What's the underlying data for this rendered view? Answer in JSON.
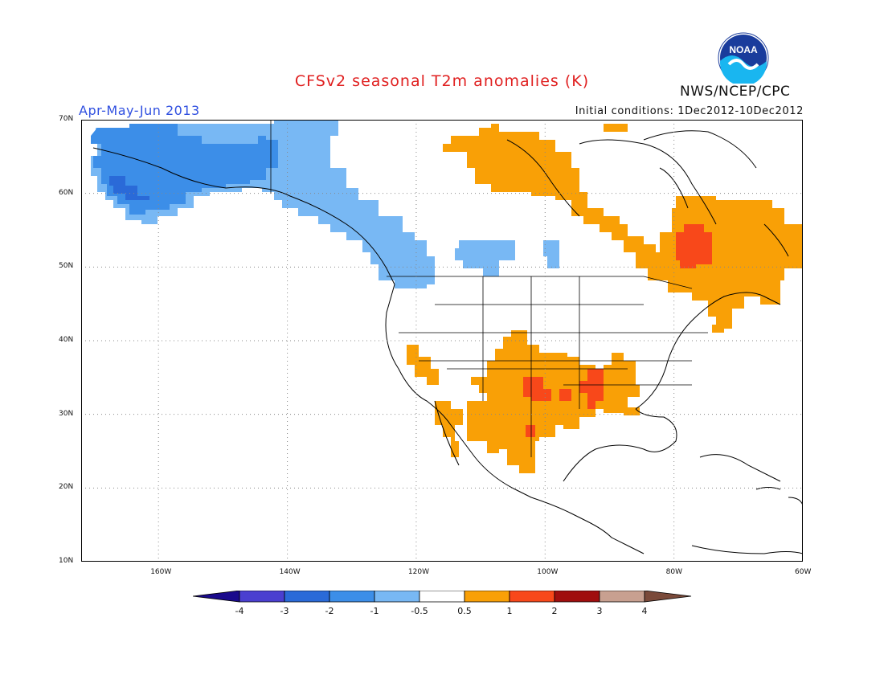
{
  "header": {
    "title": "CFSv2 seasonal T2m anomalies (K)",
    "period": "Apr-May-Jun 2013",
    "initial_conditions": "Initial conditions: 1Dec2012-10Dec2012",
    "agency": "NWS/NCEP/CPC",
    "logo_text": "NOAA"
  },
  "colors": {
    "title": "#e02020",
    "period": "#3050e0",
    "frame": "#000000",
    "grid": "#888888"
  },
  "map": {
    "lon_range": [
      -172,
      -60
    ],
    "lat_range": [
      10,
      70
    ],
    "lat_labels": [
      "70N",
      "60N",
      "50N",
      "40N",
      "30N",
      "20N",
      "10N"
    ],
    "lon_labels": [
      "160W",
      "140W",
      "120W",
      "100W",
      "80W",
      "60W"
    ],
    "grid": "dotted"
  },
  "legend": {
    "levels": [
      "-4",
      "-3",
      "-2",
      "-1",
      "-0.5",
      "0.5",
      "1",
      "2",
      "3",
      "4"
    ],
    "colors": [
      "#1a0a8c",
      "#4a3fd0",
      "#2a6ad8",
      "#3c8ee8",
      "#78b8f4",
      "#ffffff",
      "#f9a006",
      "#f8481a",
      "#a00e0e",
      "#c8a090",
      "#7a4a3a"
    ]
  },
  "anomaly_regions": [
    {
      "name": "alaska",
      "level": "-1 to -0.5",
      "color": "#78b8f4"
    },
    {
      "name": "alaska-core",
      "level": "-2 to -1",
      "color": "#3c8ee8"
    },
    {
      "name": "sw-alaska",
      "level": "-3 to -2",
      "color": "#2a6ad8"
    },
    {
      "name": "southern-canada-west",
      "level": "-1 to -0.5",
      "color": "#78b8f4"
    },
    {
      "name": "northern-canada",
      "level": "0.5 to 1",
      "color": "#f9a006"
    },
    {
      "name": "eastern-canada",
      "level": "0.5 to 1",
      "color": "#f9a006"
    },
    {
      "name": "quebec-core",
      "level": "1 to 2",
      "color": "#f8481a"
    },
    {
      "name": "south-central-us",
      "level": "0.5 to 1",
      "color": "#f9a006"
    },
    {
      "name": "texas-oklahoma-core",
      "level": "1 to 2",
      "color": "#f8481a"
    }
  ]
}
